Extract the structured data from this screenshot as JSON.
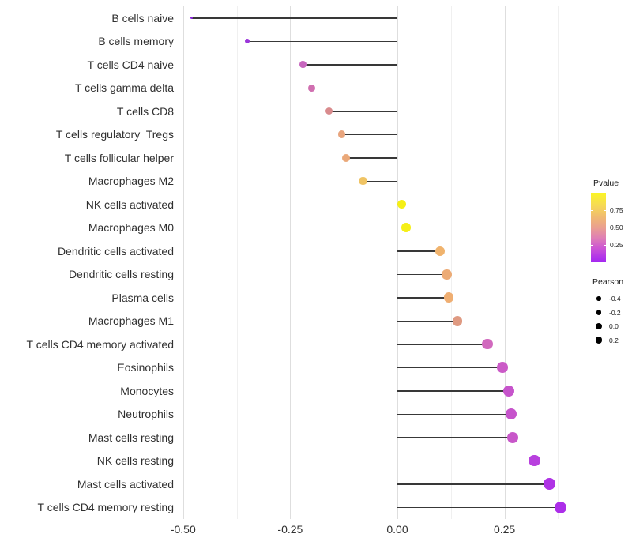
{
  "chart_data": {
    "type": "lollipop",
    "title": "",
    "xlabel": "",
    "ylabel": "",
    "grid": "vertical-only",
    "xlim": [
      -0.518,
      0.413
    ],
    "x_ticks_major": [
      -0.5,
      -0.25,
      0,
      0.25
    ],
    "x_tick_labels": [
      "-0.50",
      "-0.25",
      "0.00",
      "0.25"
    ],
    "x_ticks_minor": [
      -0.375,
      -0.125,
      0.125,
      0.375
    ],
    "segment_color": "#383838",
    "rows": [
      {
        "label": "B cells naive",
        "pearson": -0.48,
        "pvalue_approx": 0.04,
        "color": "#8A28D8"
      },
      {
        "label": "B cells memory",
        "pearson": -0.35,
        "pvalue_approx": 0.09,
        "color": "#9B36DA"
      },
      {
        "label": "T cells CD4 naive",
        "pearson": -0.22,
        "pvalue_approx": 0.3,
        "color": "#C767BE"
      },
      {
        "label": "T cells gamma delta",
        "pearson": -0.2,
        "pvalue_approx": 0.38,
        "color": "#D06FB0"
      },
      {
        "label": "T cells CD8",
        "pearson": -0.16,
        "pvalue_approx": 0.5,
        "color": "#D98B8D"
      },
      {
        "label": "T cells regulatory  Tregs",
        "pearson": -0.13,
        "pvalue_approx": 0.62,
        "color": "#E8A57E"
      },
      {
        "label": "T cells follicular helper",
        "pearson": -0.12,
        "pvalue_approx": 0.64,
        "color": "#EAA879"
      },
      {
        "label": "Macrophages M2",
        "pearson": -0.08,
        "pvalue_approx": 0.78,
        "color": "#F0C464"
      },
      {
        "label": "NK cells activated",
        "pearson": 0.01,
        "pvalue_approx": 0.97,
        "color": "#F5EF15"
      },
      {
        "label": "Macrophages M0",
        "pearson": 0.02,
        "pvalue_approx": 0.96,
        "color": "#F5EF18"
      },
      {
        "label": "Dendritic cells activated",
        "pearson": 0.1,
        "pvalue_approx": 0.72,
        "color": "#F0B36D"
      },
      {
        "label": "Dendritic cells resting",
        "pearson": 0.115,
        "pvalue_approx": 0.67,
        "color": "#ECAB76"
      },
      {
        "label": "Plasma cells",
        "pearson": 0.12,
        "pvalue_approx": 0.69,
        "color": "#EFAE72"
      },
      {
        "label": "Macrophages M1",
        "pearson": 0.14,
        "pvalue_approx": 0.55,
        "color": "#DF9A82"
      },
      {
        "label": "T cells CD4 memory activated",
        "pearson": 0.21,
        "pvalue_approx": 0.31,
        "color": "#D169BE"
      },
      {
        "label": "Eosinophils",
        "pearson": 0.245,
        "pvalue_approx": 0.25,
        "color": "#CB5AC7"
      },
      {
        "label": "Monocytes",
        "pearson": 0.26,
        "pvalue_approx": 0.23,
        "color": "#C654CB"
      },
      {
        "label": "Neutrophils",
        "pearson": 0.265,
        "pvalue_approx": 0.23,
        "color": "#C654CB"
      },
      {
        "label": "Mast cells resting",
        "pearson": 0.27,
        "pvalue_approx": 0.24,
        "color": "#C857C9"
      },
      {
        "label": "NK cells resting",
        "pearson": 0.32,
        "pvalue_approx": 0.14,
        "color": "#B840DE"
      },
      {
        "label": "Mast cells activated",
        "pearson": 0.355,
        "pvalue_approx": 0.09,
        "color": "#AF33E5"
      },
      {
        "label": "T cells CD4 memory resting",
        "pearson": 0.38,
        "pvalue_approx": 0.07,
        "color": "#AC2EE9"
      }
    ],
    "legend_pvalue": {
      "title": "Pvalue",
      "range": [
        0,
        1
      ],
      "tick_values": [
        0.75,
        0.5,
        0.25
      ],
      "tick_labels": [
        "0.75",
        "0.50",
        "0.25"
      ],
      "gradient_top_to_bottom": [
        {
          "pos": 0,
          "color": "#FBF525"
        },
        {
          "pos": 0.18,
          "color": "#F6DA55"
        },
        {
          "pos": 0.35,
          "color": "#F0BA71"
        },
        {
          "pos": 0.5,
          "color": "#EA9F90"
        },
        {
          "pos": 0.65,
          "color": "#DF7FB5"
        },
        {
          "pos": 0.8,
          "color": "#CC54D4"
        },
        {
          "pos": 0.92,
          "color": "#B236E8"
        },
        {
          "pos": 1,
          "color": "#A428F0"
        }
      ]
    },
    "legend_pearson": {
      "title": "Pearson",
      "entries": [
        {
          "label": "-0.4",
          "value": -0.4
        },
        {
          "label": "-0.2",
          "value": -0.2
        },
        {
          "label": "0.0",
          "value": 0.0
        },
        {
          "label": "0.2",
          "value": 0.2
        }
      ]
    }
  }
}
